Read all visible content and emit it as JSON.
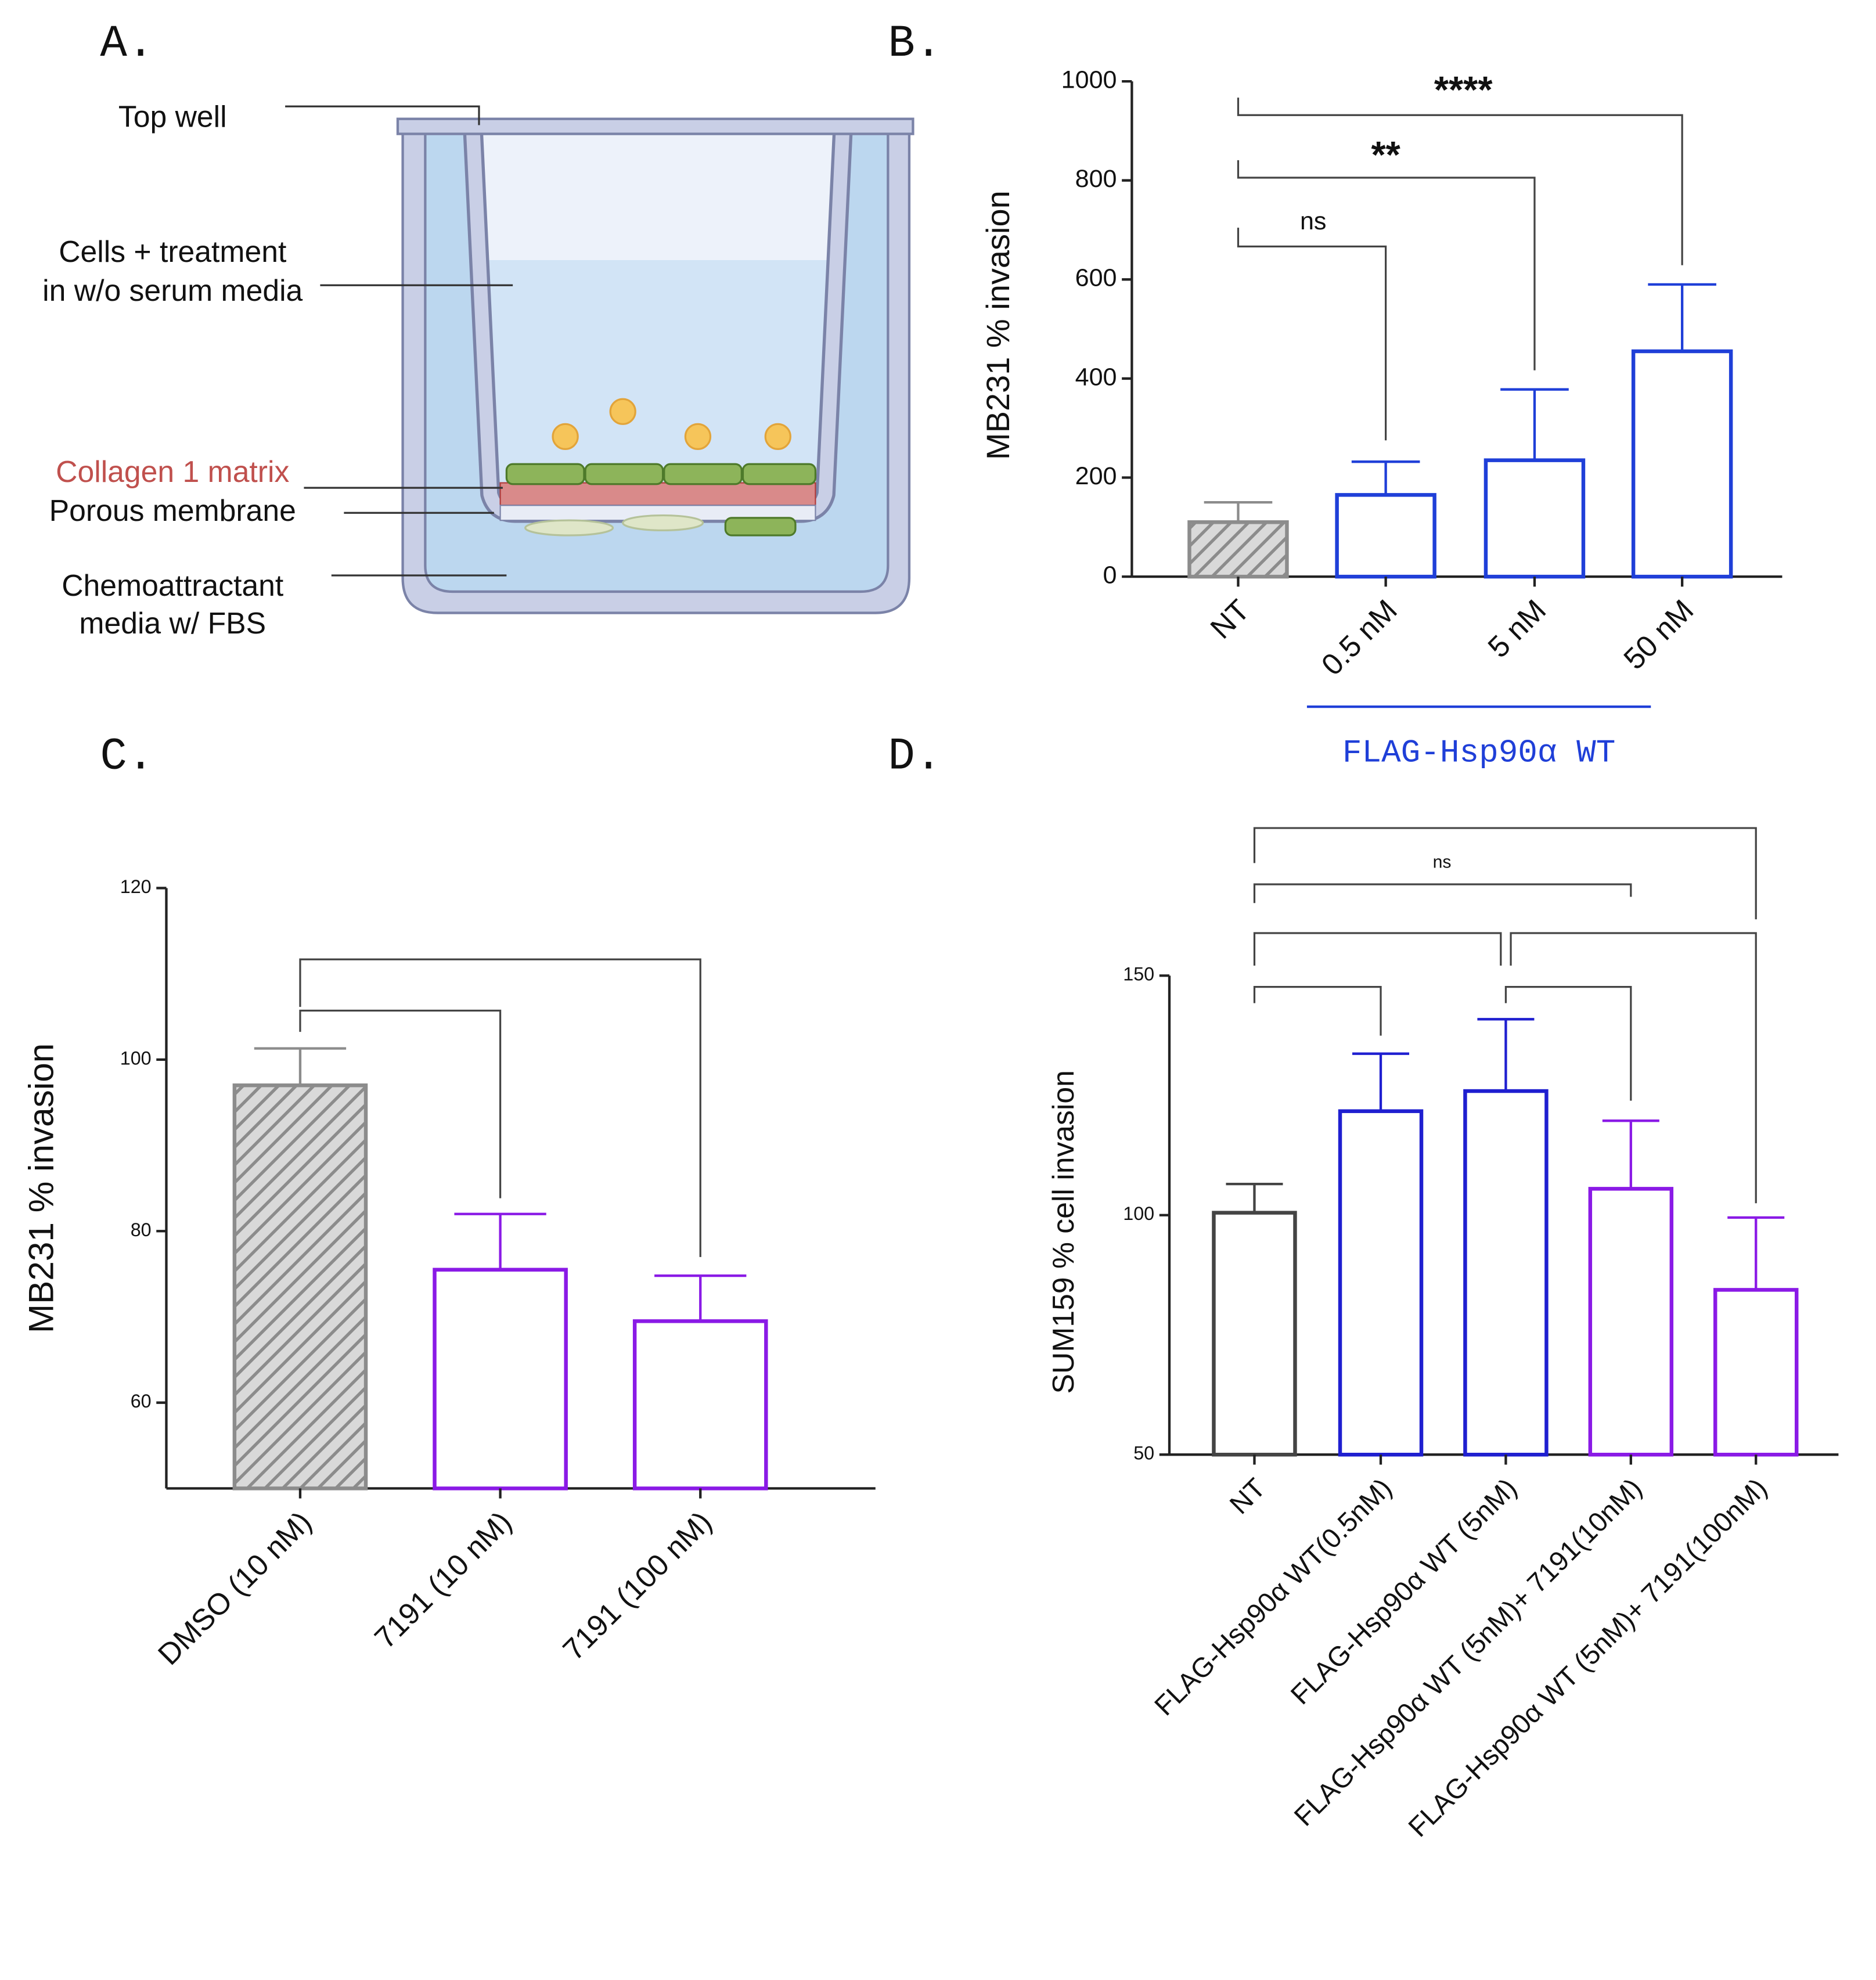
{
  "diagram": {
    "panel": "A.",
    "labels": [
      "Top well",
      "Cells + treatment",
      "in w/o serum media",
      "Collagen 1 matrix",
      "Porous membrane",
      "Chemoattractant",
      "media w/ FBS"
    ]
  },
  "chart_data": [
    {
      "type": "bar",
      "panel": "B.",
      "y_label": "MB231 % invasion",
      "categories": [
        "NT",
        "0.5 nM",
        "5 nM",
        "50 nM"
      ],
      "values": [
        110,
        165,
        235,
        455
      ],
      "errors": [
        40,
        67,
        143,
        135
      ],
      "colors": [
        "#8c8c8c",
        "#1f3fd8",
        "#1f3fd8",
        "#1f3fd8"
      ],
      "hatch": [
        true,
        false,
        false,
        false
      ],
      "ylim": [
        0,
        1000
      ],
      "yticks": [
        0,
        200,
        400,
        600,
        800,
        1000
      ],
      "annotations": [
        "ns",
        "**",
        "****"
      ],
      "group_label": "FLAG-Hsp90α WT",
      "group_color": "#1f3fd8"
    },
    {
      "type": "bar",
      "panel": "C.",
      "y_label": "MB231 % invasion",
      "categories": [
        "DMSO (10 nM)",
        "7191 (10 nM)",
        "7191 (100 nM)"
      ],
      "values": [
        97,
        75.5,
        69.5
      ],
      "errors": [
        4.3,
        6.5,
        5.3
      ],
      "colors": [
        "#8c8c8c",
        "#8a1ae6",
        "#8a1ae6"
      ],
      "hatch": [
        true,
        false,
        false
      ],
      "ylim": [
        50,
        120
      ],
      "yticks": [
        60,
        80,
        100,
        120
      ],
      "annotations": []
    },
    {
      "type": "bar",
      "panel": "D.",
      "y_label": "SUM159 % cell invasion",
      "categories": [
        "NT",
        "FLAG-Hsp90α WT(0.5nM)",
        "FLAG-Hsp90α WT (5nM)",
        "FLAG-Hsp90α WT (5nM)+ 7191(10nM)",
        "FLAG-Hsp90α WT (5nM)+ 7191(100nM)"
      ],
      "values": [
        100.5,
        121.7,
        125.9,
        105.5,
        84.4
      ],
      "errors": [
        6,
        12,
        15,
        14.2,
        15.1
      ],
      "colors": [
        "#444444",
        "#1f1fd0",
        "#1f1fd0",
        "#8a1ae6",
        "#8a1ae6"
      ],
      "hatch": [
        false,
        false,
        false,
        false,
        false
      ],
      "ylim": [
        50,
        150
      ],
      "yticks": [
        50,
        100,
        150
      ],
      "annotations": [
        "ns"
      ]
    }
  ]
}
